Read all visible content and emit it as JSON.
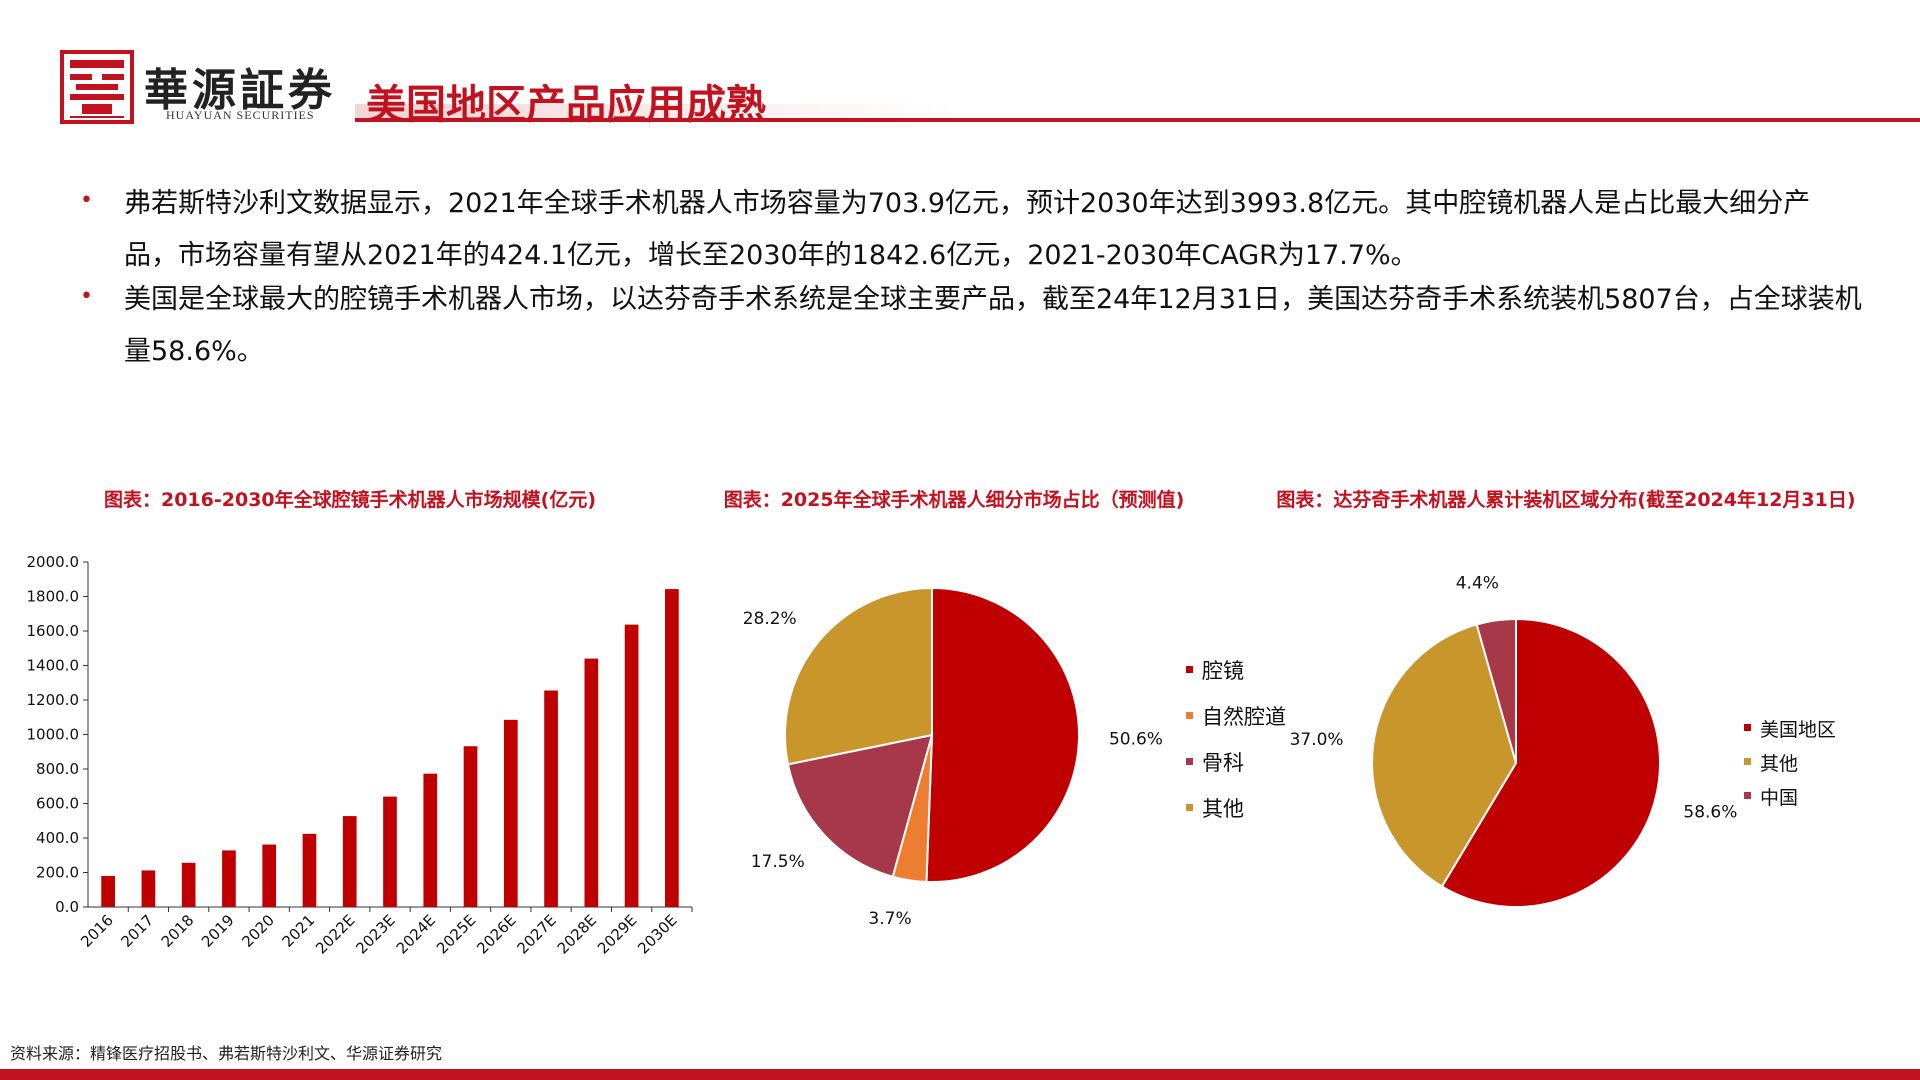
{
  "header": {
    "brand_cn": "華源証券",
    "brand_en": "HUAYUAN SECURITIES",
    "title": "美国地区产品应用成熟"
  },
  "bullets": [
    "弗若斯特沙利文数据显示，2021年全球手术机器人市场容量为703.9亿元，预计2030年达到3993.8亿元。其中腔镜机器人是占比最大细分产品，市场容量有望从2021年的424.1亿元，增长至2030年的1842.6亿元，2021-2030年CAGR为17.7%。",
    "美国是全球最大的腔镜手术机器人市场，以达芬奇手术系统是全球主要产品，截至24年12月31日，美国达芬奇手术系统装机5807台，占全球装机量58.6%。"
  ],
  "bullet_marker": "•",
  "charts": {
    "bar_title": "图表：2016-2030年全球腔镜手术机器人市场规模(亿元)",
    "pie1_title": "图表：2025年全球手术机器人细分市场占比（预测值)",
    "pie2_title": "图表：达芬奇手术机器人累计装机区域分布(截至2024年12月31日)"
  },
  "colors": {
    "accent": "#c3121f",
    "bar": "#c00000",
    "orange": "#ed7d31",
    "rose": "#a6384a",
    "gold": "#c9962c"
  },
  "chart_data": [
    {
      "type": "bar",
      "categories": [
        "2016",
        "2017",
        "2018",
        "2019",
        "2020",
        "2021",
        "2022E",
        "2023E",
        "2024E",
        "2025E",
        "2026E",
        "2027E",
        "2028E",
        "2029E",
        "2030E"
      ],
      "values": [
        180,
        212,
        256,
        328,
        362,
        424,
        527,
        640,
        773,
        932,
        1085,
        1255,
        1440,
        1637,
        1843
      ],
      "ylim": [
        0,
        2000
      ],
      "yticks": [
        "0.0",
        "200.0",
        "400.0",
        "600.0",
        "800.0",
        "1000.0",
        "1200.0",
        "1400.0",
        "1600.0",
        "1800.0",
        "2000.0"
      ],
      "grid": false,
      "title": "图表：2016-2030年全球腔镜手术机器人市场规模(亿元)"
    },
    {
      "type": "pie",
      "labels": [
        "腔镜",
        "自然腔道",
        "骨科",
        "其他"
      ],
      "values": [
        50.6,
        3.7,
        17.5,
        28.2
      ],
      "value_labels": [
        "50.6%",
        "3.7%",
        "17.5%",
        "28.2%"
      ],
      "colors": [
        "#c00000",
        "#ed7d31",
        "#a6384a",
        "#c9962c"
      ],
      "legend": "right",
      "title": "图表：2025年全球手术机器人细分市场占比（预测值)"
    },
    {
      "type": "pie",
      "labels": [
        "美国地区",
        "其他",
        "中国"
      ],
      "values": [
        58.6,
        37.0,
        4.4
      ],
      "value_labels": [
        "58.6%",
        "37.0%",
        "4.4%"
      ],
      "colors": [
        "#c00000",
        "#c9962c",
        "#a6384a"
      ],
      "legend": "right",
      "title": "图表：达芬奇手术机器人累计装机区域分布(截至2024年12月31日)"
    }
  ],
  "source": "资料来源：精锋医疗招股书、弗若斯特沙利文、华源证券研究"
}
